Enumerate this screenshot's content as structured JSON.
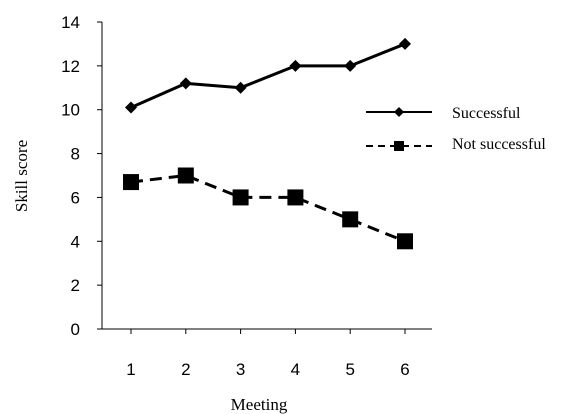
{
  "chart_data": {
    "type": "line",
    "title": "",
    "xlabel": "Meeting",
    "ylabel": "Skill score",
    "categories": [
      "1",
      "2",
      "3",
      "4",
      "5",
      "6"
    ],
    "y_ticks": [
      "0",
      "2",
      "4",
      "6",
      "8",
      "10",
      "12",
      "14"
    ],
    "ylim": [
      0,
      14
    ],
    "grid": false,
    "legend_position": "right",
    "series": [
      {
        "name": "Successful",
        "values": [
          10.1,
          11.2,
          11.0,
          12.0,
          12.0,
          13.0
        ],
        "line_style": "solid",
        "marker": "diamond",
        "color": "#000000"
      },
      {
        "name": "Not successful",
        "values": [
          6.7,
          7.0,
          6.0,
          6.0,
          5.0,
          4.0
        ],
        "line_style": "dashed",
        "marker": "square",
        "color": "#000000"
      }
    ]
  }
}
